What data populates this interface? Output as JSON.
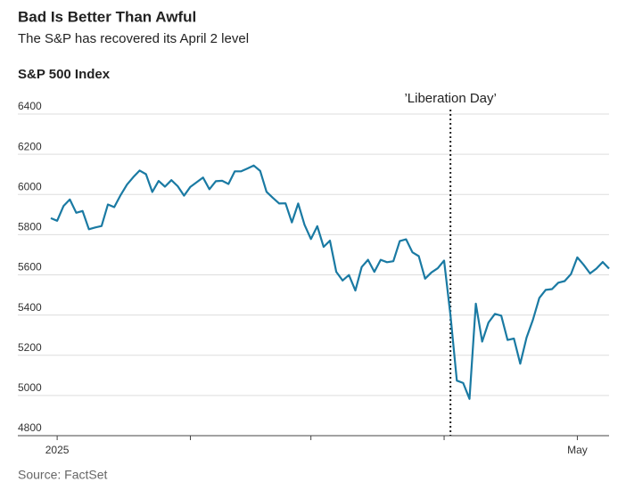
{
  "chart_data": {
    "type": "line",
    "title": "Bad Is Better Than Awful",
    "subtitle": "The S&P has recovered its April 2 level",
    "ylabel": "S&P 500 Index",
    "source": "Source: FactSet",
    "color": "#1a7aa3",
    "grid": true,
    "ylim": [
      4800,
      6400
    ],
    "yticks": [
      4800,
      5000,
      5200,
      5400,
      5600,
      5800,
      6000,
      6200,
      6400
    ],
    "categories": [
      null,
      "2025",
      null,
      null,
      null,
      null,
      null,
      null,
      null,
      null,
      null,
      null,
      null,
      null,
      null,
      null,
      null,
      null,
      null,
      null,
      null,
      null,
      null,
      null,
      null,
      null,
      null,
      null,
      null,
      null,
      null,
      null,
      null,
      null,
      null,
      null,
      null,
      null,
      null,
      null,
      null,
      null,
      null,
      null,
      null,
      null,
      null,
      null,
      null,
      null,
      null,
      null,
      null,
      null,
      null,
      null,
      null,
      null,
      null,
      null,
      null,
      null,
      null,
      null,
      null,
      null,
      null,
      null,
      null,
      null,
      null,
      null,
      null,
      null,
      null,
      null,
      null,
      null,
      null,
      null,
      null,
      null,
      null,
      "May",
      null,
      null,
      null,
      null,
      null
    ],
    "xticks": [
      1,
      22,
      41,
      62,
      83
    ],
    "values": [
      5882,
      5869,
      5942,
      5975,
      5909,
      5918,
      5827,
      5836,
      5843,
      5950,
      5937,
      5997,
      6049,
      6086,
      6119,
      6101,
      6012,
      6067,
      6039,
      6071,
      6041,
      5994,
      6038,
      6061,
      6084,
      6026,
      6066,
      6068,
      6052,
      6115,
      6115,
      6129,
      6144,
      6117,
      6013,
      5983,
      5955,
      5956,
      5861,
      5955,
      5849,
      5778,
      5842,
      5739,
      5770,
      5615,
      5572,
      5599,
      5522,
      5639,
      5675,
      5615,
      5675,
      5663,
      5668,
      5768,
      5777,
      5712,
      5693,
      5581,
      5612,
      5633,
      5671,
      5397,
      5074,
      5062,
      4983,
      5457,
      5268,
      5363,
      5406,
      5397,
      5276,
      5283,
      5158,
      5288,
      5376,
      5485,
      5525,
      5529,
      5561,
      5569,
      5604,
      5687,
      5650,
      5607,
      5631,
      5664,
      5631
    ],
    "annotation": {
      "label": "’Liberation Day’",
      "x": 63
    }
  }
}
